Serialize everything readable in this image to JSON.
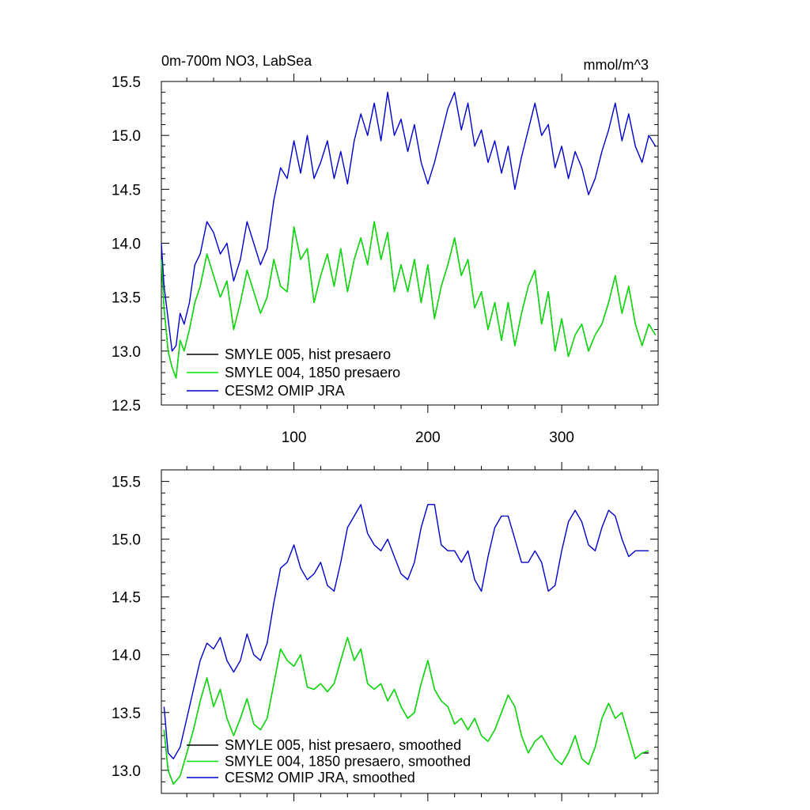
{
  "chart_data": [
    {
      "type": "line",
      "title": "0m-700m NO3, LabSea",
      "units": "mmol/m^3",
      "xlabel": "",
      "ylabel": "",
      "xlim": [
        1,
        372
      ],
      "ylim": [
        12.5,
        15.5
      ],
      "xticks": [
        100,
        200,
        300
      ],
      "xtick_labels": [
        "100",
        "200",
        "300"
      ],
      "yticks": [
        12.5,
        13.0,
        13.5,
        14.0,
        14.5,
        15.0,
        15.5
      ],
      "ytick_labels": [
        "12.5",
        "13.0",
        "13.5",
        "14.0",
        "14.5",
        "15.0",
        "15.5"
      ],
      "grid": false,
      "legend_position": "bottom-left",
      "x": [
        1,
        3,
        6,
        9,
        12,
        15,
        18,
        22,
        26,
        30,
        35,
        40,
        45,
        50,
        55,
        60,
        65,
        70,
        75,
        80,
        85,
        90,
        95,
        100,
        105,
        110,
        115,
        120,
        125,
        130,
        135,
        140,
        145,
        150,
        155,
        160,
        165,
        170,
        175,
        180,
        185,
        190,
        195,
        200,
        205,
        210,
        215,
        220,
        225,
        230,
        235,
        240,
        245,
        250,
        255,
        260,
        265,
        270,
        275,
        280,
        285,
        290,
        295,
        300,
        305,
        310,
        315,
        320,
        325,
        330,
        335,
        340,
        345,
        350,
        355,
        360,
        365,
        370
      ],
      "series": [
        {
          "name": "SMYLE 005, hist presaero",
          "color": "#000000",
          "values": [
            13.85,
            13.4,
            13.0,
            12.85,
            12.75,
            13.1,
            13.0,
            13.2,
            13.45,
            13.6,
            13.9,
            13.7,
            13.5,
            13.65,
            13.2,
            13.45,
            13.75,
            13.55,
            13.35,
            13.5,
            13.85,
            13.6,
            13.55,
            14.15,
            13.85,
            13.95,
            13.45,
            13.7,
            13.9,
            13.6,
            13.95,
            13.55,
            13.85,
            14.05,
            13.8,
            14.2,
            13.85,
            14.1,
            13.55,
            13.8,
            13.55,
            13.85,
            13.45,
            13.8,
            13.3,
            13.6,
            13.8,
            14.05,
            13.7,
            13.85,
            13.4,
            13.55,
            13.2,
            13.45,
            13.1,
            13.45,
            13.05,
            13.35,
            13.6,
            13.75,
            13.25,
            13.55,
            13.0,
            13.3,
            12.95,
            13.15,
            13.25,
            13.0,
            13.15,
            13.25,
            13.45,
            13.7,
            13.35,
            13.6,
            13.25,
            13.05,
            13.25,
            13.15
          ]
        },
        {
          "name": "SMYLE 004, 1850 presaero",
          "color": "#00e600",
          "values": [
            13.85,
            13.4,
            13.0,
            12.85,
            12.75,
            13.1,
            13.0,
            13.2,
            13.45,
            13.6,
            13.9,
            13.7,
            13.5,
            13.65,
            13.2,
            13.45,
            13.75,
            13.55,
            13.35,
            13.5,
            13.85,
            13.6,
            13.55,
            14.15,
            13.85,
            13.95,
            13.45,
            13.7,
            13.9,
            13.6,
            13.95,
            13.55,
            13.85,
            14.05,
            13.8,
            14.2,
            13.85,
            14.1,
            13.55,
            13.8,
            13.55,
            13.85,
            13.45,
            13.8,
            13.3,
            13.6,
            13.8,
            14.05,
            13.7,
            13.85,
            13.4,
            13.55,
            13.2,
            13.45,
            13.1,
            13.45,
            13.05,
            13.35,
            13.6,
            13.75,
            13.25,
            13.55,
            13.0,
            13.3,
            12.95,
            13.15,
            13.25,
            13.0,
            13.15,
            13.25,
            13.45,
            13.7,
            13.35,
            13.6,
            13.25,
            13.05,
            13.25,
            13.15
          ]
        },
        {
          "name": "CESM2 OMIP JRA",
          "color": "#0000cc",
          "values": [
            14.0,
            13.6,
            13.3,
            13.0,
            13.05,
            13.35,
            13.25,
            13.45,
            13.8,
            13.9,
            14.2,
            14.1,
            13.9,
            14.0,
            13.65,
            13.85,
            14.2,
            14.0,
            13.8,
            13.95,
            14.4,
            14.7,
            14.6,
            14.95,
            14.65,
            15.0,
            14.6,
            14.75,
            14.95,
            14.6,
            14.85,
            14.55,
            14.95,
            15.2,
            15.0,
            15.3,
            14.95,
            15.4,
            15.0,
            15.15,
            14.85,
            15.1,
            14.75,
            14.55,
            14.75,
            15.0,
            15.25,
            15.4,
            15.05,
            15.3,
            14.9,
            15.05,
            14.75,
            14.95,
            14.65,
            14.9,
            14.5,
            14.8,
            15.05,
            15.3,
            15.0,
            15.1,
            14.7,
            14.9,
            14.6,
            14.85,
            14.7,
            14.45,
            14.6,
            14.85,
            15.05,
            15.3,
            14.95,
            15.2,
            14.9,
            14.75,
            15.0,
            14.9
          ]
        }
      ]
    },
    {
      "type": "line",
      "title": "",
      "xlabel": "",
      "ylabel": "",
      "xlim": [
        1,
        372
      ],
      "ylim": [
        12.8,
        15.6
      ],
      "xticks": [
        100,
        200,
        300
      ],
      "yticks": [
        13.0,
        13.5,
        14.0,
        14.5,
        15.0,
        15.5
      ],
      "ytick_labels": [
        "13.0",
        "13.5",
        "14.0",
        "14.5",
        "15.0",
        "15.5"
      ],
      "grid": false,
      "legend_position": "bottom-left",
      "x": [
        3,
        6,
        10,
        15,
        20,
        25,
        30,
        35,
        40,
        45,
        50,
        55,
        60,
        65,
        70,
        75,
        80,
        85,
        90,
        95,
        100,
        105,
        110,
        115,
        120,
        125,
        130,
        135,
        140,
        145,
        150,
        155,
        160,
        165,
        170,
        175,
        180,
        185,
        190,
        195,
        200,
        205,
        210,
        215,
        220,
        225,
        230,
        235,
        240,
        245,
        250,
        255,
        260,
        265,
        270,
        275,
        280,
        285,
        290,
        295,
        300,
        305,
        310,
        315,
        320,
        325,
        330,
        335,
        340,
        345,
        350,
        355,
        360,
        365
      ],
      "series": [
        {
          "name": "SMYLE 005, hist presaero, smoothed",
          "color": "#000000",
          "values": [
            13.35,
            13.0,
            12.88,
            12.95,
            13.15,
            13.35,
            13.6,
            13.8,
            13.55,
            13.7,
            13.45,
            13.3,
            13.45,
            13.62,
            13.4,
            13.35,
            13.45,
            13.75,
            14.05,
            13.95,
            13.9,
            14.0,
            13.72,
            13.7,
            13.75,
            13.68,
            13.75,
            13.95,
            14.15,
            13.95,
            14.05,
            13.75,
            13.7,
            13.75,
            13.6,
            13.7,
            13.55,
            13.45,
            13.5,
            13.75,
            13.95,
            13.7,
            13.6,
            13.55,
            13.4,
            13.45,
            13.35,
            13.45,
            13.3,
            13.25,
            13.35,
            13.5,
            13.65,
            13.55,
            13.3,
            13.15,
            13.25,
            13.3,
            13.2,
            13.1,
            13.05,
            13.15,
            13.3,
            13.1,
            13.05,
            13.2,
            13.45,
            13.58,
            13.45,
            13.5,
            13.3,
            13.1,
            13.15,
            13.15
          ]
        },
        {
          "name": "SMYLE 004, 1850 presaero, smoothed",
          "color": "#00e600",
          "values": [
            13.35,
            13.0,
            12.88,
            12.95,
            13.15,
            13.35,
            13.6,
            13.8,
            13.55,
            13.7,
            13.45,
            13.3,
            13.45,
            13.62,
            13.4,
            13.35,
            13.45,
            13.75,
            14.05,
            13.95,
            13.9,
            14.0,
            13.72,
            13.7,
            13.75,
            13.68,
            13.75,
            13.95,
            14.15,
            13.95,
            14.05,
            13.75,
            13.7,
            13.75,
            13.6,
            13.7,
            13.55,
            13.45,
            13.5,
            13.75,
            13.95,
            13.7,
            13.6,
            13.55,
            13.4,
            13.45,
            13.35,
            13.45,
            13.3,
            13.25,
            13.35,
            13.5,
            13.65,
            13.55,
            13.3,
            13.15,
            13.25,
            13.3,
            13.2,
            13.1,
            13.05,
            13.15,
            13.3,
            13.1,
            13.05,
            13.2,
            13.45,
            13.58,
            13.45,
            13.5,
            13.3,
            13.1,
            13.15,
            13.17
          ]
        },
        {
          "name": "CESM2 OMIP JRA, smoothed",
          "color": "#0000cc",
          "values": [
            13.55,
            13.15,
            13.1,
            13.2,
            13.45,
            13.7,
            13.95,
            14.1,
            14.05,
            14.15,
            13.95,
            13.85,
            13.95,
            14.18,
            14.0,
            13.95,
            14.1,
            14.45,
            14.75,
            14.8,
            14.95,
            14.75,
            14.65,
            14.7,
            14.8,
            14.6,
            14.55,
            14.8,
            15.1,
            15.2,
            15.3,
            15.05,
            14.95,
            14.9,
            15.0,
            14.85,
            14.7,
            14.65,
            14.8,
            15.1,
            15.3,
            15.3,
            14.95,
            14.9,
            14.9,
            14.8,
            14.9,
            14.65,
            14.55,
            14.85,
            15.1,
            15.2,
            15.2,
            15.0,
            14.8,
            14.8,
            14.9,
            14.8,
            14.55,
            14.6,
            14.9,
            15.15,
            15.25,
            15.15,
            14.95,
            14.9,
            15.1,
            15.25,
            15.2,
            15.0,
            14.85,
            14.9,
            14.9,
            14.9
          ]
        }
      ]
    }
  ]
}
